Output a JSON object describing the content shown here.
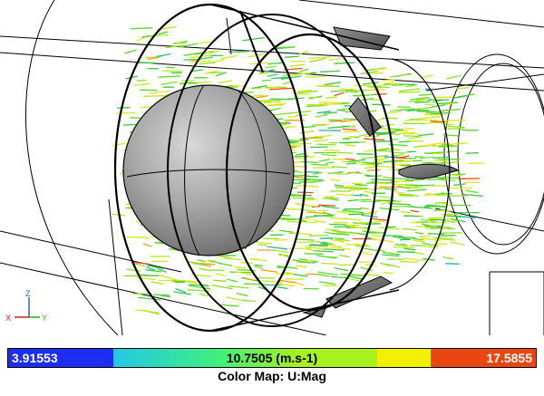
{
  "colorbar": {
    "min_label": "3.91553",
    "mid_label": "10.7505 (m.s-1)",
    "max_label": "17.5855",
    "colors": [
      "#1e2ef0",
      "#22c8e6",
      "#3ef07c",
      "#a8f020",
      "#f0f000",
      "#e84810"
    ]
  },
  "color_map_title": "Color Map: U:Mag",
  "axes": {
    "z": "Z",
    "x": "X",
    "y": "Y"
  }
}
